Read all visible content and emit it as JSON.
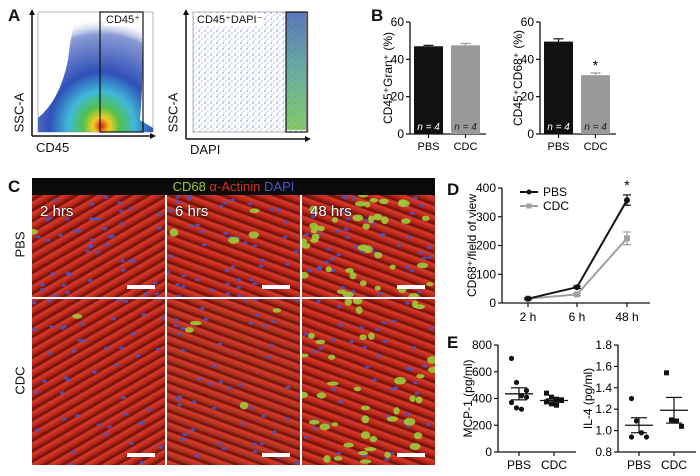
{
  "panels": {
    "A": {
      "letter": "A",
      "plots": [
        {
          "gate_label": "CD45⁺",
          "xlabel": "CD45",
          "ylabel": "SSC-A"
        },
        {
          "gate_label": "CD45⁺DAPI⁻",
          "xlabel": "DAPI",
          "ylabel": "SSC-A"
        }
      ]
    },
    "B": {
      "letter": "B"
    },
    "C": {
      "letter": "C",
      "stain_header": {
        "cd68": "CD68",
        "actinin": "α-Actinin",
        "dapi": "DAPI"
      },
      "columns": [
        "2 hrs",
        "6 hrs",
        "48 hrs"
      ],
      "rows": [
        "PBS",
        "CDC"
      ],
      "colors": {
        "cd68": "#9ccc3a",
        "actinin": "#d8322c",
        "dapi": "#4a56c8"
      }
    },
    "D": {
      "letter": "D"
    },
    "E": {
      "letter": "E"
    }
  },
  "chart_data": [
    {
      "id": "B1",
      "type": "bar",
      "categories": [
        "PBS",
        "CDC"
      ],
      "values": [
        47,
        47.5
      ],
      "errors": [
        0.5,
        1.0
      ],
      "bar_colors": [
        "#111111",
        "#999999"
      ],
      "annotations": [
        "n = 4",
        "n = 4"
      ],
      "ylabel": "CD45⁺Gran⁺ (%)",
      "ylim": [
        0,
        60
      ],
      "yticks": [
        "0",
        "20",
        "40",
        "60"
      ]
    },
    {
      "id": "B2",
      "type": "bar",
      "categories": [
        "PBS",
        "CDC"
      ],
      "values": [
        49.5,
        31.5
      ],
      "errors": [
        1.5,
        1.2
      ],
      "bar_colors": [
        "#111111",
        "#999999"
      ],
      "annotations": [
        "n = 4",
        "n = 4"
      ],
      "significance": [
        "",
        "*"
      ],
      "ylabel": "CD45⁺CD68⁺ (%)",
      "ylim": [
        0,
        60
      ],
      "yticks": [
        "0",
        "20",
        "40",
        "60"
      ]
    },
    {
      "id": "D",
      "type": "line",
      "x": [
        "2 h",
        "6 h",
        "48 h"
      ],
      "series": [
        {
          "name": "PBS",
          "color": "#111111",
          "values": [
            15,
            55,
            358
          ],
          "errors": [
            3,
            4,
            18
          ]
        },
        {
          "name": "CDC",
          "color": "#a0a0a0",
          "values": [
            15,
            30,
            225
          ],
          "errors": [
            3,
            4,
            22
          ]
        }
      ],
      "significance": [
        "",
        "",
        "*"
      ],
      "ylabel": "CD68⁺/field of view",
      "ylim": [
        0,
        400
      ],
      "yticks": [
        "0",
        "100",
        "200",
        "300",
        "400"
      ],
      "legend": "top-left"
    },
    {
      "id": "E1",
      "type": "scatter",
      "categories": [
        "PBS",
        "CDC"
      ],
      "series": [
        {
          "name": "PBS",
          "marker": "circle",
          "values": [
            700,
            520,
            420,
            410,
            370,
            330,
            320,
            460
          ],
          "mean": 435,
          "sem": 45
        },
        {
          "name": "CDC",
          "marker": "square",
          "values": [
            440,
            410,
            395,
            385,
            375,
            360,
            350,
            390
          ],
          "mean": 385,
          "sem": 12
        }
      ],
      "ylabel": "MCP-1 (pg/ml)",
      "ylim": [
        0,
        800
      ],
      "yticks": [
        "0",
        "200",
        "400",
        "600",
        "800"
      ]
    },
    {
      "id": "E2",
      "type": "scatter",
      "categories": [
        "PBS",
        "CDC"
      ],
      "series": [
        {
          "name": "PBS",
          "marker": "circle",
          "values": [
            1.3,
            1.09,
            0.98,
            0.94,
            0.94
          ],
          "mean": 1.05,
          "sem": 0.07
        },
        {
          "name": "CDC",
          "marker": "square",
          "values": [
            1.54,
            1.1,
            1.09,
            1.04
          ],
          "mean": 1.19,
          "sem": 0.12
        }
      ],
      "ylabel": "IL-4 (pg/ml)",
      "ylim": [
        0.8,
        1.8
      ],
      "yticks": [
        "0.8",
        "1.0",
        "1.2",
        "1.4",
        "1.6",
        "1.8"
      ]
    }
  ]
}
